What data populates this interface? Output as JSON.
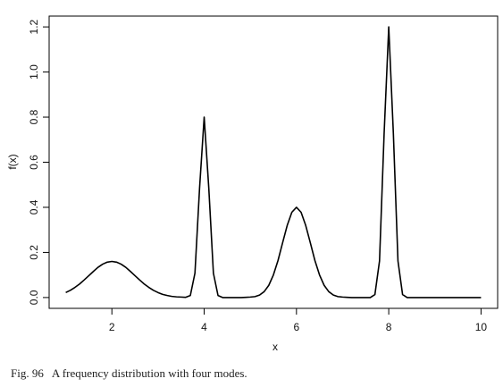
{
  "chart_data": {
    "type": "line",
    "caption": "Fig. 96   A frequency distribution with four modes.",
    "xlabel": "x",
    "ylabel": "f(x)",
    "color": "#000000",
    "xlim": [
      0.64,
      10.36
    ],
    "ylim": [
      -0.048,
      1.248
    ],
    "xticks": [
      2,
      4,
      6,
      8,
      10
    ],
    "yticks": [
      {
        "value": 0,
        "label": "0.0"
      },
      0.2,
      0.4,
      0.6,
      0.8,
      {
        "value": 1,
        "label": "1.0"
      },
      1.2
    ],
    "x": [
      1.0,
      1.1,
      1.2,
      1.3,
      1.4,
      1.5,
      1.6,
      1.7,
      1.8,
      1.9,
      2.0,
      2.1,
      2.2,
      2.3,
      2.4,
      2.5,
      2.6,
      2.7,
      2.8,
      2.9,
      3.0,
      3.1,
      3.2,
      3.3,
      3.4,
      3.5,
      3.6,
      3.7,
      3.8,
      3.9,
      4.0,
      4.1,
      4.2,
      4.3,
      4.4,
      4.5,
      4.6,
      4.7,
      4.8,
      4.9,
      5.0,
      5.1,
      5.2,
      5.3,
      5.4,
      5.5,
      5.6,
      5.7,
      5.8,
      5.9,
      6.0,
      6.1,
      6.2,
      6.3,
      6.4,
      6.5,
      6.6,
      6.7,
      6.8,
      6.9,
      7.0,
      7.1,
      7.2,
      7.3,
      7.4,
      7.5,
      7.6,
      7.7,
      7.8,
      7.9,
      8.0,
      8.1,
      8.2,
      8.3,
      8.4,
      8.5,
      8.6,
      8.7,
      8.8,
      8.9,
      9.0,
      9.1,
      9.2,
      9.3,
      9.4,
      9.5,
      9.6,
      9.7,
      9.8,
      9.9,
      10.0
    ],
    "values": [
      0.022,
      0.032,
      0.045,
      0.06,
      0.078,
      0.097,
      0.116,
      0.134,
      0.148,
      0.157,
      0.16,
      0.157,
      0.148,
      0.134,
      0.116,
      0.097,
      0.078,
      0.06,
      0.045,
      0.032,
      0.022,
      0.014,
      0.009,
      0.005,
      0.003,
      0.002,
      0.001,
      0.009,
      0.108,
      0.485,
      0.8,
      0.485,
      0.108,
      0.009,
      0,
      0,
      0,
      0,
      0,
      0.001,
      0.002,
      0.004,
      0.011,
      0.026,
      0.054,
      0.1,
      0.164,
      0.243,
      0.32,
      0.378,
      0.4,
      0.378,
      0.32,
      0.243,
      0.164,
      0.1,
      0.054,
      0.026,
      0.011,
      0.004,
      0.002,
      0.001,
      0,
      0,
      0,
      0,
      0,
      0.013,
      0.162,
      0.728,
      1.2,
      0.728,
      0.162,
      0.013,
      0,
      0,
      0,
      0,
      0,
      0,
      0,
      0,
      0,
      0,
      0,
      0,
      0,
      0,
      0,
      0,
      0
    ]
  }
}
